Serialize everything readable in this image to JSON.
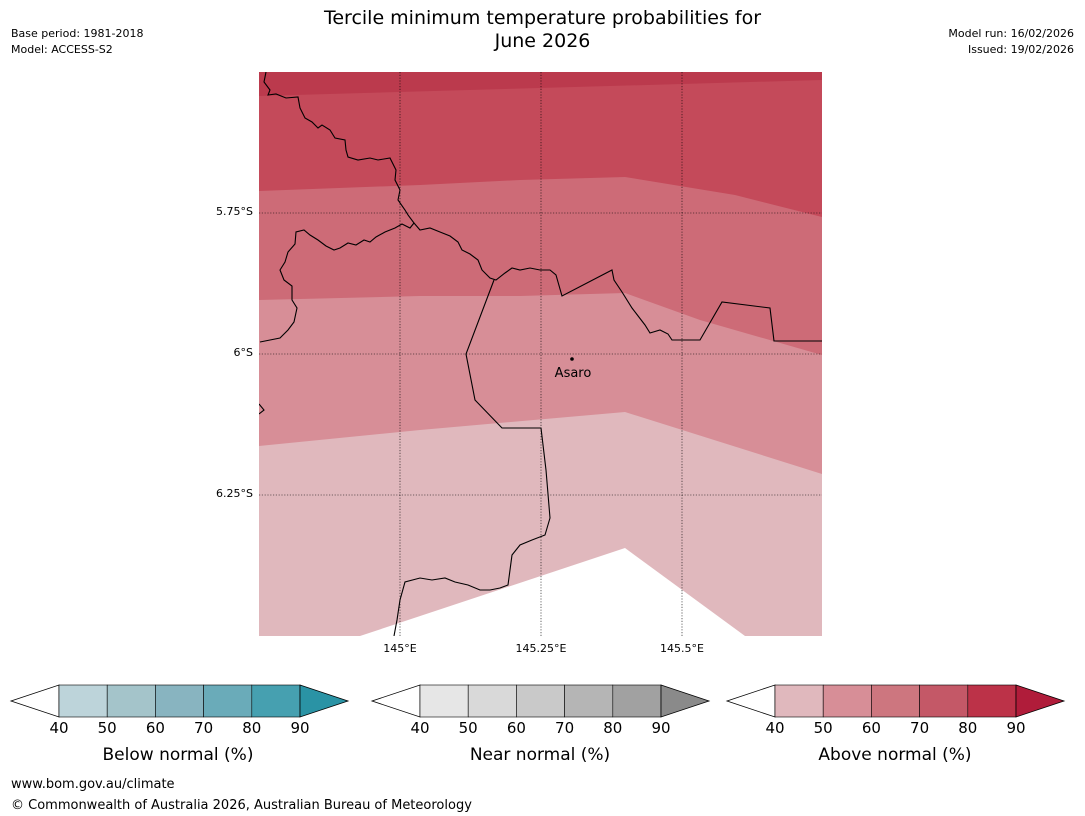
{
  "title": {
    "line1": "Tercile minimum temperature probabilities for",
    "line2": "June 2026"
  },
  "meta": {
    "base_period": "Base period: 1981-2018",
    "model": "Model: ACCESS-S2",
    "model_run": "Model run: 16/02/2026",
    "issued": "Issued: 19/02/2026"
  },
  "map": {
    "lat_labels": [
      "5.75°S",
      "6°S",
      "6.25°S"
    ],
    "lon_labels": [
      "145°E",
      "145.25°E",
      "145.5°E"
    ],
    "place": "Asaro",
    "colors": {
      "above_90": "#bb3a4d",
      "above_70": "#c44a5a",
      "above_60": "#cd6b77",
      "above_50": "#d78e97",
      "above_40": "#e0b8bd",
      "nodata": "#ffffff"
    }
  },
  "colorbars": [
    {
      "label": "Below normal (%)",
      "ticks": [
        "40",
        "50",
        "60",
        "70",
        "80",
        "90"
      ],
      "colors": [
        "#bdd4da",
        "#a4c4ca",
        "#88b4c0",
        "#6aabb9",
        "#46a0b0",
        "#2a93a5"
      ]
    },
    {
      "label": "Near normal (%)",
      "ticks": [
        "40",
        "50",
        "60",
        "70",
        "80",
        "90"
      ],
      "colors": [
        "#e6e6e6",
        "#d9d9d9",
        "#c9c9c9",
        "#b5b5b5",
        "#a1a1a1",
        "#8a8a8a"
      ]
    },
    {
      "label": "Above normal (%)",
      "ticks": [
        "40",
        "50",
        "60",
        "70",
        "80",
        "90"
      ],
      "colors": [
        "#e0b8bd",
        "#d78e97",
        "#cd767f",
        "#c45867",
        "#bc3248",
        "#b01c3a"
      ]
    }
  ],
  "footer": {
    "url": "www.bom.gov.au/climate",
    "copyright": "© Commonwealth of Australia 2026, Australian Bureau of Meteorology"
  }
}
